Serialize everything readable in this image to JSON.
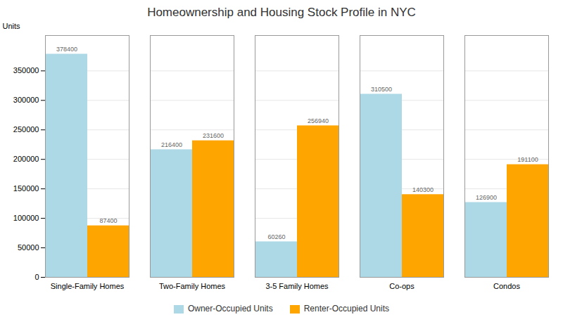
{
  "chart_data": {
    "type": "bar",
    "title": "Homeownership and Housing Stock Profile in NYC",
    "categories": [
      "Single-Family Homes",
      "Two-Family Homes",
      "3-5 Family Homes",
      "Co-ops",
      "Condos"
    ],
    "series": [
      {
        "name": "Owner-Occupied Units",
        "color": "#ADD8E6",
        "values": [
          378400,
          216400,
          60260,
          310500,
          126900
        ]
      },
      {
        "name": "Renter-Occupied Units",
        "color": "#FFA500",
        "values": [
          87400,
          231600,
          256940,
          140300,
          191100
        ]
      }
    ],
    "ylabel": "Units",
    "ylim": [
      0,
      410000
    ],
    "yticks": [
      0,
      50000,
      100000,
      150000,
      200000,
      250000,
      300000,
      350000
    ],
    "grid": true,
    "legend": "bottom",
    "data_labels": true
  }
}
